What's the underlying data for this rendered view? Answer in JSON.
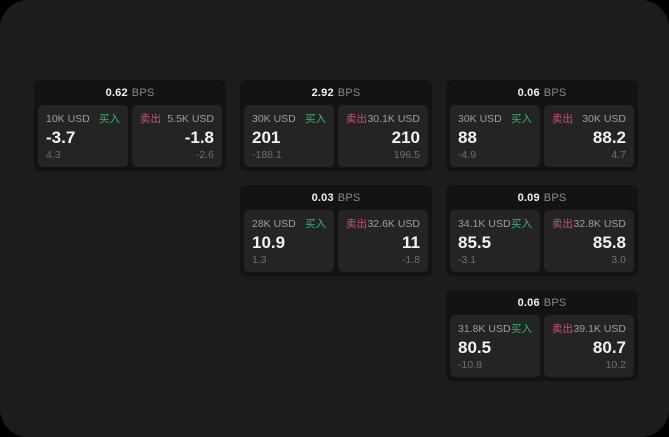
{
  "labels": {
    "bps_unit": "BPS",
    "buy": "买入",
    "sell": "卖出"
  },
  "colors": {
    "outer_bg": "#000000",
    "page_bg": "#1c1c1c",
    "card_bg": "#131313",
    "panel_bg": "#242424",
    "buy_green": "#35b573",
    "sell_red": "#c25570",
    "value_white": "#f2f2f2",
    "notional_gray": "#9e9e9e",
    "sub_gray": "#6f6f6f",
    "unit_gray": "#8a8a8a"
  },
  "cards": [
    {
      "bps": "0.62",
      "buy": {
        "notional": "10K USD",
        "price": "-3.7",
        "sub": "4.3"
      },
      "sell": {
        "notional": "5.5K USD",
        "price": "-1.8",
        "sub": "-2.6"
      }
    },
    {
      "bps": "2.92",
      "buy": {
        "notional": "30K USD",
        "price": "201",
        "sub": "-188.1"
      },
      "sell": {
        "notional": "30.1K USD",
        "price": "210",
        "sub": "196.5"
      }
    },
    {
      "bps": "0.06",
      "buy": {
        "notional": "30K USD",
        "price": "88",
        "sub": "-4.9"
      },
      "sell": {
        "notional": "30K USD",
        "price": "88.2",
        "sub": "4.7"
      }
    },
    {
      "bps": "0.03",
      "buy": {
        "notional": "28K USD",
        "price": "10.9",
        "sub": "1.3"
      },
      "sell": {
        "notional": "32.6K USD",
        "price": "11",
        "sub": "-1.8"
      }
    },
    {
      "bps": "0.09",
      "buy": {
        "notional": "34.1K USD",
        "price": "85.5",
        "sub": "-3.1"
      },
      "sell": {
        "notional": "32.8K USD",
        "price": "85.8",
        "sub": "3.0"
      }
    },
    {
      "bps": "0.06",
      "buy": {
        "notional": "31.8K USD",
        "price": "80.5",
        "sub": "-10.8"
      },
      "sell": {
        "notional": "39.1K USD",
        "price": "80.7",
        "sub": "10.2"
      }
    }
  ]
}
